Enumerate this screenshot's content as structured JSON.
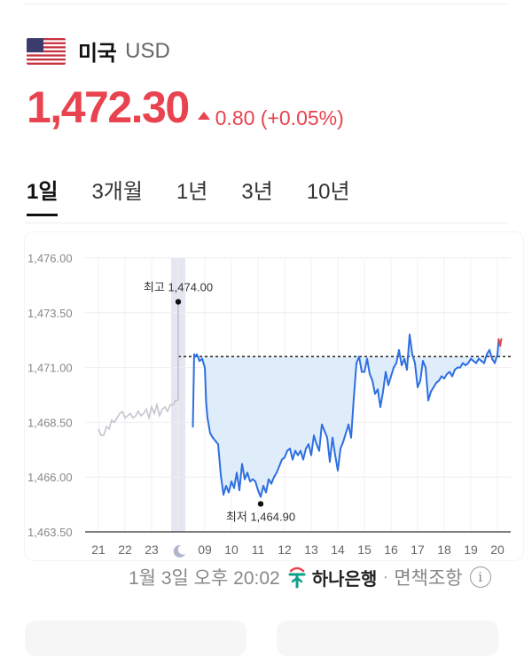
{
  "header": {
    "country": "미국",
    "currency_code": "USD",
    "flag_icon": "us-flag-icon"
  },
  "quote": {
    "price": "1,472.30",
    "change": "0.80 (+0.05%)",
    "direction_icon": "triangle-up-icon",
    "color": "#e8434e"
  },
  "tabs": [
    {
      "label": "1일",
      "active": true
    },
    {
      "label": "3개월",
      "active": false
    },
    {
      "label": "1년",
      "active": false
    },
    {
      "label": "3년",
      "active": false
    },
    {
      "label": "10년",
      "active": false
    }
  ],
  "footer": {
    "timestamp": "1월 3일 오후 20:02",
    "bank": "하나은행",
    "separator": "·",
    "disclaimer": "면책조항",
    "info_icon": "info-icon"
  },
  "chart_data": {
    "type": "line",
    "y_ticks": [
      "1,476.00",
      "1,473.50",
      "1,471.00",
      "1,468.50",
      "1,466.00",
      "1,463.50"
    ],
    "y_tick_values": [
      1476.0,
      1473.5,
      1471.0,
      1468.5,
      1466.0,
      1463.5
    ],
    "ylim": [
      1463.5,
      1476.0
    ],
    "x_ticks": [
      "21",
      "22",
      "23",
      "moon-icon",
      "09",
      "10",
      "11",
      "12",
      "13",
      "14",
      "15",
      "16",
      "17",
      "18",
      "19",
      "20"
    ],
    "reference_value": 1471.5,
    "high": {
      "label": "최고 1,474.00",
      "value": 1474.0
    },
    "low": {
      "label": "최저 1,464.90",
      "value": 1464.9
    },
    "colors": {
      "pre_market": "#c4c4cf",
      "line": "#2e6fe0",
      "area": "#dcebfb",
      "above_reference": "#e8434e",
      "night_band": "#e4e6f2"
    },
    "grid": true,
    "series": [
      {
        "segment": "previous",
        "x": [
          0.0,
          0.1,
          0.2,
          0.3,
          0.4,
          0.5,
          0.6,
          0.7,
          0.8,
          0.9,
          1.0,
          1.1,
          1.2,
          1.3,
          1.4,
          1.5,
          1.6,
          1.7,
          1.8,
          1.9,
          2.0,
          2.1,
          2.2,
          2.3,
          2.4,
          2.5,
          2.6,
          2.7,
          2.8,
          2.9,
          3.0
        ],
        "values": [
          1468.2,
          1467.9,
          1467.9,
          1468.3,
          1468.2,
          1468.6,
          1468.5,
          1468.7,
          1468.9,
          1469.0,
          1468.7,
          1468.8,
          1468.9,
          1468.7,
          1468.8,
          1469.0,
          1468.8,
          1468.9,
          1469.1,
          1468.7,
          1469.2,
          1468.9,
          1469.3,
          1468.8,
          1469.1,
          1469.2,
          1469.0,
          1469.3,
          1469.3,
          1469.5,
          1469.5
        ]
      },
      {
        "segment": "spike",
        "x": [
          3.0,
          3.0
        ],
        "values": [
          1469.5,
          1474.0
        ]
      },
      {
        "segment": "today",
        "x": [
          3.55,
          3.6,
          3.65,
          3.7,
          3.8,
          3.9,
          4.0,
          4.05,
          4.1,
          4.2,
          4.3,
          4.5,
          4.6,
          4.7,
          4.8,
          4.9,
          5.0,
          5.1,
          5.2,
          5.3,
          5.4,
          5.5,
          5.6,
          5.7,
          5.8,
          5.9,
          6.0,
          6.1,
          6.2,
          6.3,
          6.4,
          6.5,
          6.6,
          6.7,
          6.8,
          6.9,
          7.0,
          7.1,
          7.2,
          7.3,
          7.4,
          7.5,
          7.6,
          7.7,
          7.8,
          7.9,
          8.0,
          8.1,
          8.2,
          8.3,
          8.4,
          8.5,
          8.6,
          8.7,
          8.8,
          8.9,
          9.0,
          9.1,
          9.2,
          9.3,
          9.4,
          9.5,
          9.6,
          9.7,
          9.8,
          9.9,
          10.0,
          10.1,
          10.2,
          10.3,
          10.4,
          10.5,
          10.6,
          10.7,
          10.8,
          10.9,
          11.0,
          11.1,
          11.2,
          11.3,
          11.4,
          11.5,
          11.6,
          11.7,
          11.8,
          11.9,
          12.0,
          12.1,
          12.2,
          12.3,
          12.4,
          12.5,
          12.6,
          12.7,
          12.8,
          12.9,
          13.0,
          13.1,
          13.2,
          13.3,
          13.4,
          13.5,
          13.6,
          13.7,
          13.8,
          13.9,
          14.0,
          14.1,
          14.2,
          14.3,
          14.4,
          14.5,
          14.6,
          14.7,
          14.8,
          14.9,
          15.0,
          15.05,
          15.1,
          15.15
        ],
        "values": [
          1468.3,
          1471.6,
          1471.5,
          1471.6,
          1471.3,
          1471.4,
          1471.0,
          1469.4,
          1468.7,
          1468.0,
          1467.8,
          1467.5,
          1466.1,
          1465.2,
          1465.6,
          1465.3,
          1465.8,
          1465.5,
          1466.2,
          1465.4,
          1466.6,
          1465.9,
          1466.2,
          1465.8,
          1465.9,
          1465.8,
          1465.4,
          1465.1,
          1465.6,
          1465.3,
          1465.9,
          1465.7,
          1466.0,
          1466.2,
          1466.5,
          1466.8,
          1466.9,
          1467.2,
          1467.3,
          1466.8,
          1467.2,
          1467.0,
          1467.2,
          1466.8,
          1467.3,
          1467.5,
          1467.0,
          1467.9,
          1467.5,
          1467.2,
          1468.4,
          1468.1,
          1467.8,
          1466.7,
          1467.8,
          1467.0,
          1466.3,
          1467.3,
          1467.6,
          1468.0,
          1468.4,
          1467.8,
          1469.6,
          1471.2,
          1471.5,
          1470.8,
          1470.8,
          1471.4,
          1470.7,
          1470.4,
          1469.8,
          1470.0,
          1469.2,
          1469.9,
          1470.8,
          1470.2,
          1470.6,
          1471.0,
          1471.2,
          1471.8,
          1471.1,
          1471.4,
          1470.9,
          1472.5,
          1471.6,
          1471.2,
          1470.1,
          1470.4,
          1471.3,
          1471.0,
          1469.5,
          1469.9,
          1470.1,
          1470.3,
          1470.4,
          1470.6,
          1470.5,
          1470.7,
          1470.8,
          1470.6,
          1470.9,
          1471.0,
          1471.0,
          1471.2,
          1471.1,
          1471.2,
          1471.4,
          1471.3,
          1471.2,
          1471.4,
          1471.3,
          1471.2,
          1471.6,
          1471.8,
          1471.4,
          1471.2,
          1471.6,
          1472.3,
          1472.0,
          1472.3
        ]
      }
    ]
  }
}
